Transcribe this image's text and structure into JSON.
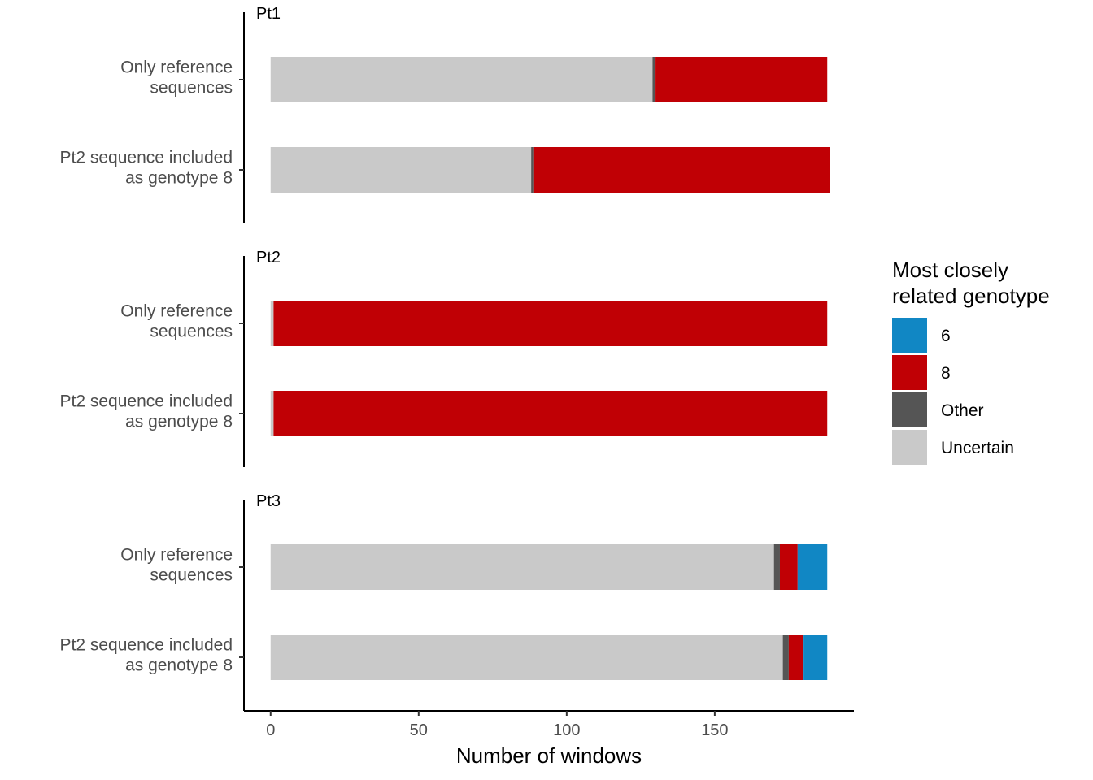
{
  "chart_data": {
    "type": "bar",
    "orientation": "horizontal",
    "stacked": true,
    "facets": [
      "Pt1",
      "Pt2",
      "Pt3"
    ],
    "categories": [
      "Only reference\nsequences",
      "Pt2 sequence included\nas genotype 8"
    ],
    "stack_order": [
      "Uncertain",
      "Other",
      "8",
      "6"
    ],
    "series": [
      {
        "name": "6",
        "values": [
          [
            0,
            0
          ],
          [
            0,
            0
          ],
          [
            10,
            8
          ]
        ]
      },
      {
        "name": "8",
        "values": [
          [
            58,
            100
          ],
          [
            187,
            187
          ],
          [
            6,
            5
          ]
        ]
      },
      {
        "name": "Other",
        "values": [
          [
            1,
            1
          ],
          [
            0,
            0
          ],
          [
            2,
            2
          ]
        ]
      },
      {
        "name": "Uncertain",
        "values": [
          [
            129,
            88
          ],
          [
            1,
            1
          ],
          [
            170,
            173
          ]
        ]
      }
    ],
    "colors": {
      "6": "#1187c4",
      "8": "#c00005",
      "Other": "#555555",
      "Uncertain": "#c9c9c9"
    },
    "xlabel": "Number of windows",
    "ylabel": "",
    "xlim": [
      -9,
      197
    ],
    "xticks": [
      0,
      50,
      100,
      150
    ],
    "legend": {
      "title": "Most closely\nrelated genotype",
      "position": "right",
      "order": [
        "6",
        "8",
        "Other",
        "Uncertain"
      ]
    },
    "grid": false
  }
}
